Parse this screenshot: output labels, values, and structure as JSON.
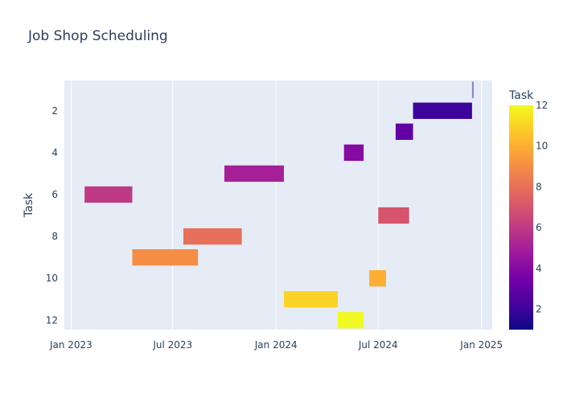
{
  "chart_data": {
    "type": "gantt",
    "title": "Job Shop Scheduling",
    "ylabel": "Task",
    "xlabel": "",
    "x_ticks": [
      {
        "date": "2023-01-01",
        "label": "Jan 2023"
      },
      {
        "date": "2023-07-01",
        "label": "Jul 2023"
      },
      {
        "date": "2024-01-01",
        "label": "Jan 2024"
      },
      {
        "date": "2024-07-01",
        "label": "Jul 2024"
      },
      {
        "date": "2025-01-01",
        "label": "Jan 2025"
      }
    ],
    "xlim": [
      "2022-12-20",
      "2025-01-20"
    ],
    "y_ticks": [
      2,
      4,
      6,
      8,
      10,
      12
    ],
    "ylim": [
      12.45,
      0.55
    ],
    "grid": true,
    "colorbar": {
      "title": "Task",
      "range": [
        1,
        12
      ],
      "ticks": [
        2,
        4,
        6,
        8,
        10,
        12
      ],
      "colorscale": [
        "#0d0887",
        "#46039f",
        "#7201a8",
        "#9c179e",
        "#bd3786",
        "#d8576b",
        "#ed7953",
        "#fb9f3a",
        "#fdca26",
        "#f0f921"
      ]
    },
    "tasks": [
      {
        "task": 1,
        "start": "2024-12-15",
        "end": "2024-12-18"
      },
      {
        "task": 2,
        "start": "2024-09-01",
        "end": "2024-12-15"
      },
      {
        "task": 3,
        "start": "2024-08-01",
        "end": "2024-09-01"
      },
      {
        "task": 4,
        "start": "2024-05-01",
        "end": "2024-06-05"
      },
      {
        "task": 5,
        "start": "2023-10-01",
        "end": "2024-01-15"
      },
      {
        "task": 6,
        "start": "2023-01-25",
        "end": "2023-04-20"
      },
      {
        "task": 7,
        "start": "2024-07-01",
        "end": "2024-08-25"
      },
      {
        "task": 8,
        "start": "2023-07-20",
        "end": "2023-11-01"
      },
      {
        "task": 9,
        "start": "2023-04-20",
        "end": "2023-08-15"
      },
      {
        "task": 10,
        "start": "2024-06-15",
        "end": "2024-07-15"
      },
      {
        "task": 11,
        "start": "2024-01-15",
        "end": "2024-04-20"
      },
      {
        "task": 12,
        "start": "2024-04-20",
        "end": "2024-06-05"
      }
    ]
  }
}
